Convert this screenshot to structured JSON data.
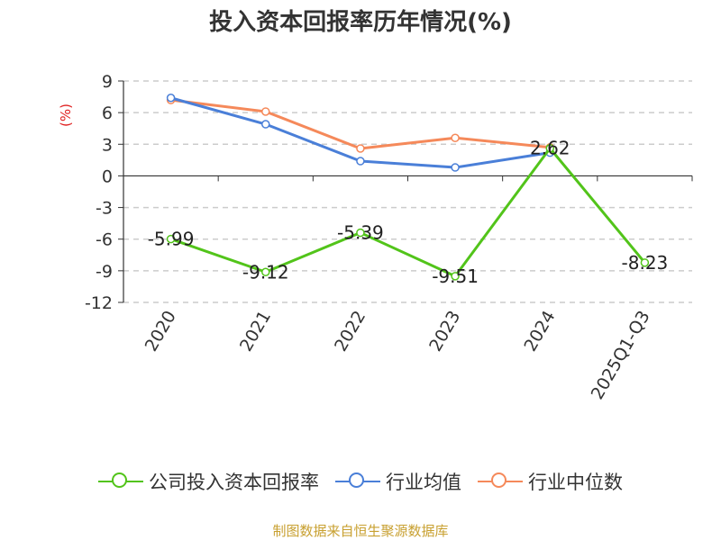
{
  "title": "投入资本回报率历年情况(%)",
  "source": "制图数据来自恒生聚源数据库",
  "chart_data": {
    "type": "line",
    "ylabel": "(%)",
    "categories": [
      "2020",
      "2021",
      "2022",
      "2023",
      "2024",
      "2025Q1-Q3"
    ],
    "ylim": [
      -12,
      9
    ],
    "yticks": [
      9,
      6,
      3,
      0,
      -3,
      -6,
      -9,
      -12
    ],
    "grid": true,
    "legend_position": "bottom",
    "series": [
      {
        "name": "公司投入资本回报率",
        "color": "#52c41a",
        "values": [
          -5.99,
          -9.12,
          -5.39,
          -9.51,
          2.62,
          -8.23
        ],
        "labels": [
          "-5.99",
          "-9.12",
          "-5.39",
          "-9.51",
          "2.62",
          "-8.23"
        ]
      },
      {
        "name": "行业均值",
        "color": "#4a7fd8",
        "values": [
          7.4,
          4.9,
          1.4,
          0.8,
          2.2,
          null
        ]
      },
      {
        "name": "行业中位数",
        "color": "#f5895a",
        "values": [
          7.2,
          6.1,
          2.6,
          3.6,
          2.7,
          null
        ]
      }
    ]
  }
}
